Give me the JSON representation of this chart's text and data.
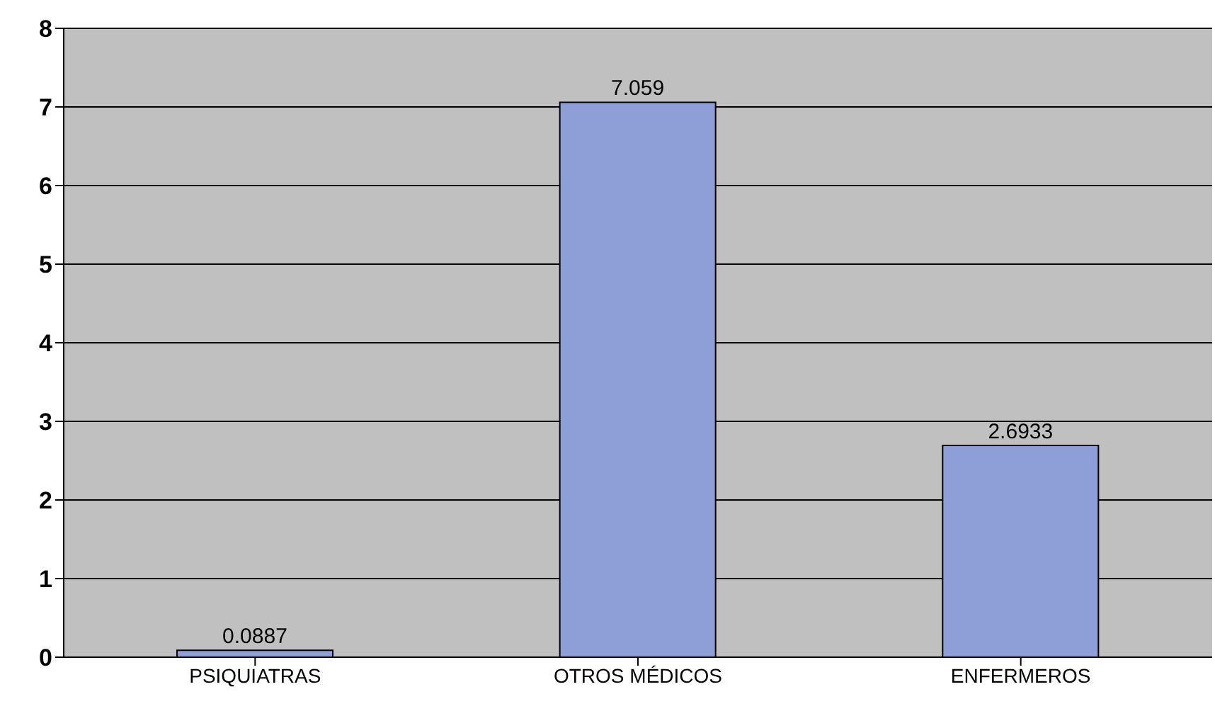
{
  "chart_data": {
    "type": "bar",
    "categories": [
      "PSIQUIATRAS",
      "OTROS MÉDICOS",
      "ENFERMEROS"
    ],
    "values": [
      0.0887,
      7.059,
      2.6933
    ],
    "color": "#8e9ed6",
    "ylim": [
      0,
      8
    ],
    "yticks": [
      0,
      1,
      2,
      3,
      4,
      5,
      6,
      7,
      8
    ],
    "grid": "y",
    "data_labels": true
  }
}
